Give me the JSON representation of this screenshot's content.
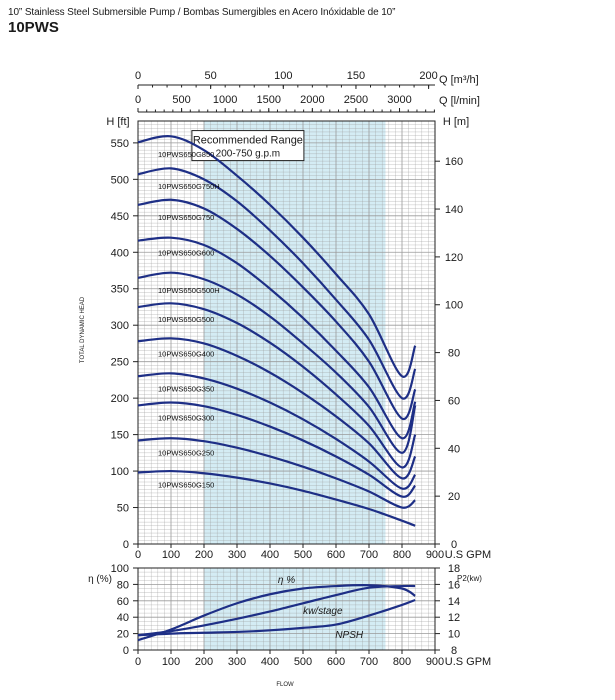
{
  "header": {
    "subtitle": "10” Stainless Steel Submersible Pump / Bombas Sumergibles en Acero Inóxidable de 10”",
    "model": "10PWS"
  },
  "chart_data": [
    {
      "type": "line",
      "title": "Head vs flow",
      "recommended_range": {
        "label_line1": "Recommended Range",
        "label_line2": "200-750 g.p.m",
        "x": [
          200,
          750
        ]
      },
      "x": {
        "label": "U.S GPM",
        "range": [
          0,
          900
        ],
        "ticks": [
          0,
          100,
          200,
          300,
          400,
          500,
          600,
          700,
          800,
          900
        ]
      },
      "y_left": {
        "label": "H [ft]",
        "range": [
          0,
          580
        ],
        "ticks": [
          0,
          50,
          100,
          150,
          200,
          250,
          300,
          350,
          400,
          450,
          500,
          550
        ]
      },
      "y_right": {
        "label": "H [m]",
        "range": [
          0,
          176.8
        ],
        "ticks": [
          0,
          20,
          40,
          60,
          80,
          100,
          120,
          140,
          160
        ]
      },
      "top_axis_m3h": {
        "label": "Q [m³/h]",
        "range": [
          0,
          204.4
        ],
        "ticks": [
          0,
          50,
          100,
          150,
          200
        ]
      },
      "top_axis_lmin": {
        "label": "Q [l/min]",
        "range": [
          0,
          3407
        ],
        "ticks": [
          0,
          500,
          1000,
          1500,
          2000,
          2500,
          3000
        ]
      },
      "ylabel_side": "TOTAL DYNAMIC HEAD",
      "series": [
        {
          "name": "10PWS650G850",
          "x": [
            0,
            100,
            200,
            300,
            400,
            500,
            600,
            700,
            800,
            840
          ],
          "y": [
            551,
            559,
            540,
            505,
            465,
            420,
            370,
            315,
            230,
            272
          ]
        },
        {
          "name": "10PWS650G750H",
          "x": [
            0,
            100,
            200,
            300,
            400,
            500,
            600,
            700,
            800,
            840
          ],
          "y": [
            507,
            515,
            500,
            470,
            430,
            385,
            335,
            280,
            200,
            240
          ]
        },
        {
          "name": "10PWS650G750",
          "x": [
            0,
            100,
            200,
            300,
            400,
            500,
            600,
            700,
            800,
            840
          ],
          "y": [
            465,
            472,
            460,
            432,
            395,
            352,
            305,
            250,
            172,
            212
          ]
        },
        {
          "name": "10PWS650G600",
          "x": [
            0,
            100,
            200,
            300,
            400,
            500,
            600,
            700,
            800,
            840
          ],
          "y": [
            416,
            420,
            410,
            385,
            350,
            310,
            265,
            215,
            145,
            195
          ]
        },
        {
          "name": "10PWS650G500H",
          "x": [
            0,
            100,
            200,
            300,
            400,
            500,
            600,
            700,
            800,
            840
          ],
          "y": [
            365,
            372,
            363,
            342,
            312,
            275,
            235,
            188,
            125,
            190
          ]
        },
        {
          "name": "10PWS650G500",
          "x": [
            0,
            100,
            200,
            300,
            400,
            500,
            600,
            700,
            800,
            840
          ],
          "y": [
            325,
            330,
            322,
            303,
            276,
            243,
            205,
            162,
            105,
            150
          ]
        },
        {
          "name": "10PWS650G400",
          "x": [
            0,
            100,
            200,
            300,
            400,
            500,
            600,
            700,
            800,
            840
          ],
          "y": [
            278,
            282,
            275,
            258,
            235,
            207,
            175,
            138,
            90,
            120
          ]
        },
        {
          "name": "10PWS650G350",
          "x": [
            0,
            100,
            200,
            300,
            400,
            500,
            600,
            700,
            800,
            840
          ],
          "y": [
            230,
            234,
            227,
            213,
            194,
            171,
            144,
            113,
            76,
            95
          ]
        },
        {
          "name": "10PWS650G300",
          "x": [
            0,
            100,
            200,
            300,
            400,
            500,
            600,
            700,
            800,
            840
          ],
          "y": [
            190,
            194,
            189,
            177,
            161,
            142,
            120,
            95,
            65,
            80
          ]
        },
        {
          "name": "10PWS650G250",
          "x": [
            0,
            100,
            200,
            300,
            400,
            500,
            600,
            700,
            800,
            840
          ],
          "y": [
            142,
            145,
            141,
            132,
            120,
            106,
            90,
            72,
            50,
            60
          ]
        },
        {
          "name": "10PWS650G150",
          "x": [
            0,
            100,
            200,
            300,
            400,
            500,
            600,
            700,
            800,
            840
          ],
          "y": [
            98,
            100,
            97,
            91,
            83,
            73,
            61,
            48,
            32,
            25
          ]
        }
      ]
    },
    {
      "type": "line",
      "title": "Efficiency, power and NPSH vs flow",
      "x": {
        "label": "U.S GPM",
        "range": [
          0,
          900
        ],
        "ticks": [
          0,
          100,
          200,
          300,
          400,
          500,
          600,
          700,
          800,
          900
        ],
        "label_bottom": "FLOW"
      },
      "y_left": {
        "label": "η (%)",
        "range": [
          0,
          100
        ],
        "ticks": [
          0,
          20,
          40,
          60,
          80,
          100
        ]
      },
      "y_right": {
        "label": "P2(kw)",
        "range": [
          8,
          18
        ],
        "ticks": [
          8,
          10,
          12,
          14,
          16,
          18
        ]
      },
      "series": [
        {
          "name": "η %",
          "x": [
            0,
            100,
            200,
            300,
            400,
            500,
            600,
            700,
            800,
            840
          ],
          "y": [
            12,
            25,
            42,
            57,
            68,
            75,
            78,
            79,
            75,
            66
          ]
        },
        {
          "name": "kw/stage",
          "x": [
            0,
            100,
            200,
            300,
            400,
            500,
            600,
            700,
            800,
            840
          ],
          "y": [
            9.8,
            10.3,
            11.0,
            11.8,
            12.7,
            13.7,
            14.7,
            15.6,
            15.8,
            15.8
          ]
        },
        {
          "name": "NPSH",
          "x": [
            0,
            100,
            200,
            300,
            400,
            500,
            600,
            700,
            800,
            840
          ],
          "y": [
            9.8,
            10.0,
            10.1,
            10.2,
            10.4,
            10.7,
            11.1,
            12.2,
            13.5,
            14.1
          ]
        }
      ]
    }
  ]
}
